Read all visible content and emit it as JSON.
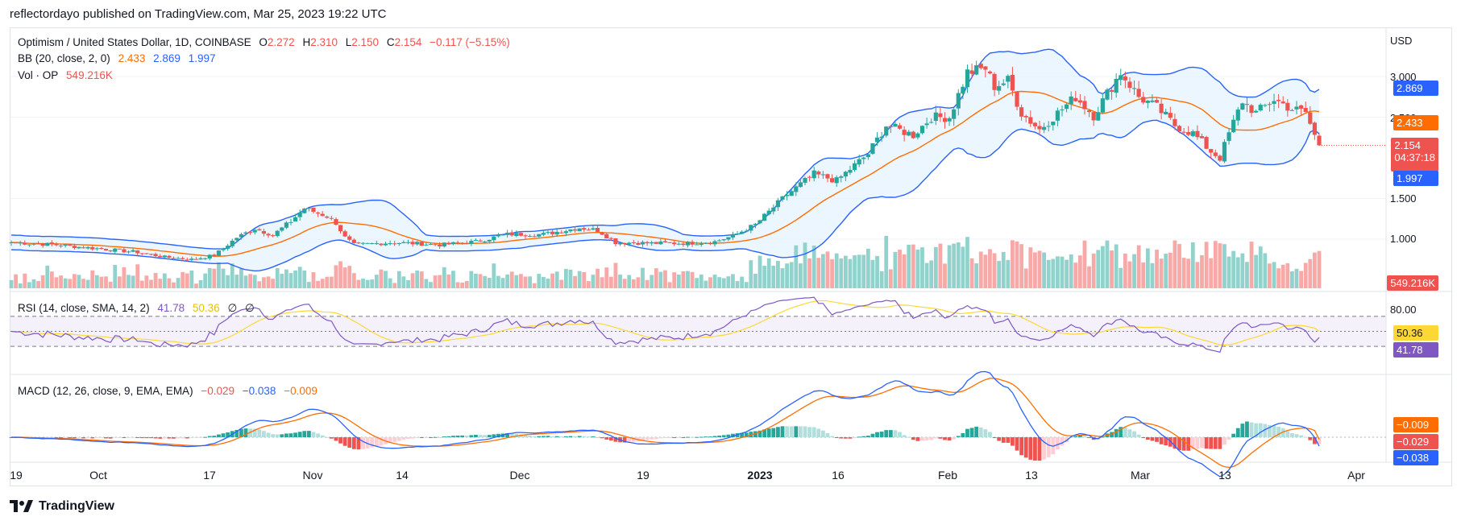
{
  "header": {
    "publish_line": "reflectordayo published on TradingView.com, Mar 25, 2023 19:22 UTC"
  },
  "legend": {
    "symbol": "Optimism / United States Dollar, 1D, COINBASE",
    "ohlc": {
      "o_label": "O",
      "o": "2.272",
      "h_label": "H",
      "h": "2.310",
      "l_label": "L",
      "l": "2.150",
      "c_label": "C",
      "c": "2.154",
      "change": "−0.117 (−5.15%)"
    },
    "bb": {
      "label": "BB (20, close, 2, 0)",
      "basis": "2.433",
      "upper": "2.869",
      "lower": "1.997"
    },
    "vol": {
      "label": "Vol · OP",
      "value": "549.216K"
    },
    "rsi": {
      "label": "RSI (14, close, SMA, 14, 2)",
      "rsi": "41.78",
      "sma": "50.36",
      "x1": "∅",
      "x2": "∅"
    },
    "macd": {
      "label": "MACD (12, 26, close, 9, EMA, EMA)",
      "hist": "−0.029",
      "macd": "−0.038",
      "signal": "−0.009"
    }
  },
  "price_axis": {
    "currency": "USD",
    "ticks": [
      "3.000",
      "2.500",
      "1.500",
      "1.000"
    ],
    "labels": {
      "bb_upper": "2.869",
      "bb_basis": "2.433",
      "last_price": "2.154",
      "countdown": "04:37:18",
      "bb_lower": "1.997",
      "volume": "549.216K",
      "rsi_top": "80.00",
      "rsi_sma": "50.36",
      "rsi": "41.78",
      "macd_signal": "−0.009",
      "macd_hist": "−0.029",
      "macd": "−0.038"
    }
  },
  "time_axis": {
    "ticks": [
      "19",
      "Oct",
      "17",
      "Nov",
      "14",
      "Dec",
      "19",
      "2023",
      "16",
      "Feb",
      "13",
      "Mar",
      "13",
      "Apr"
    ]
  },
  "brand": {
    "name": "TradingView",
    "logo_icon": "tradingview-logo-icon"
  },
  "colors": {
    "up": "#26a69a",
    "down": "#ef5350",
    "bb_band": "#2962ff",
    "bb_basis": "#ff6d00",
    "bb_fill": "#e3f2fd",
    "rsi_line": "#7e57c2",
    "rsi_sma": "#fdd835",
    "rsi_fill": "#ede7f6",
    "macd_line": "#2962ff",
    "signal_line": "#ff6d00"
  },
  "chart_data": {
    "type": "candlestick",
    "title": "Optimism / United States Dollar, 1D, COINBASE",
    "ylabel": "USD",
    "ylim": [
      0.65,
      3.4
    ],
    "y_ticks": [
      1.0,
      1.5,
      2.5,
      3.0
    ],
    "x_tick_labels": [
      "19",
      "Oct",
      "17",
      "Nov",
      "14",
      "Dec",
      "19",
      "2023",
      "16",
      "Feb",
      "13",
      "Mar",
      "13",
      "Apr"
    ],
    "price_close_anchors": [
      [
        0,
        0.96
      ],
      [
        10,
        0.93
      ],
      [
        20,
        0.88
      ],
      [
        28,
        0.84
      ],
      [
        34,
        0.78
      ],
      [
        40,
        0.75
      ],
      [
        45,
        0.8
      ],
      [
        50,
        1.02
      ],
      [
        54,
        1.13
      ],
      [
        58,
        1.05
      ],
      [
        62,
        1.22
      ],
      [
        65,
        1.38
      ],
      [
        68,
        1.32
      ],
      [
        70,
        1.28
      ],
      [
        72,
        1.2
      ],
      [
        74,
        1.02
      ],
      [
        76,
        0.93
      ],
      [
        85,
        0.96
      ],
      [
        95,
        0.93
      ],
      [
        103,
        0.97
      ],
      [
        110,
        1.06
      ],
      [
        118,
        1.06
      ],
      [
        126,
        1.14
      ],
      [
        130,
        1.11
      ],
      [
        134,
        0.96
      ],
      [
        142,
        0.95
      ],
      [
        150,
        0.95
      ],
      [
        156,
        0.97
      ],
      [
        160,
        1.04
      ],
      [
        165,
        1.18
      ],
      [
        172,
        1.55
      ],
      [
        178,
        1.8
      ],
      [
        183,
        1.72
      ],
      [
        190,
        2.05
      ],
      [
        194,
        2.4
      ],
      [
        200,
        2.28
      ],
      [
        204,
        2.5
      ],
      [
        208,
        2.5
      ],
      [
        212,
        3.05
      ],
      [
        216,
        3.1
      ],
      [
        218,
        2.88
      ],
      [
        221,
        2.95
      ],
      [
        224,
        2.55
      ],
      [
        228,
        2.35
      ],
      [
        232,
        2.55
      ],
      [
        236,
        2.75
      ],
      [
        240,
        2.52
      ],
      [
        244,
        2.88
      ],
      [
        246,
        3.05
      ],
      [
        250,
        2.75
      ],
      [
        254,
        2.62
      ],
      [
        258,
        2.4
      ],
      [
        262,
        2.3
      ],
      [
        266,
        2.08
      ],
      [
        268,
        2.0
      ],
      [
        270,
        2.3
      ],
      [
        273,
        2.7
      ],
      [
        276,
        2.55
      ],
      [
        280,
        2.72
      ],
      [
        284,
        2.6
      ],
      [
        287,
        2.56
      ],
      [
        289,
        2.27
      ],
      [
        290,
        2.154
      ]
    ],
    "volume_note": "volume bars in OP units; last bar 549.216K",
    "indicators": {
      "bollinger": {
        "period": 20,
        "stdev": 2,
        "last": {
          "upper": 2.869,
          "basis": 2.433,
          "lower": 1.997
        }
      },
      "rsi": {
        "period": 14,
        "last": 41.78,
        "sma_last": 50.36,
        "levels": [
          70,
          50,
          30
        ]
      },
      "macd": {
        "fast": 12,
        "slow": 26,
        "signal": 9,
        "last": {
          "macd": -0.038,
          "signal": -0.009,
          "hist": -0.029
        }
      }
    }
  }
}
